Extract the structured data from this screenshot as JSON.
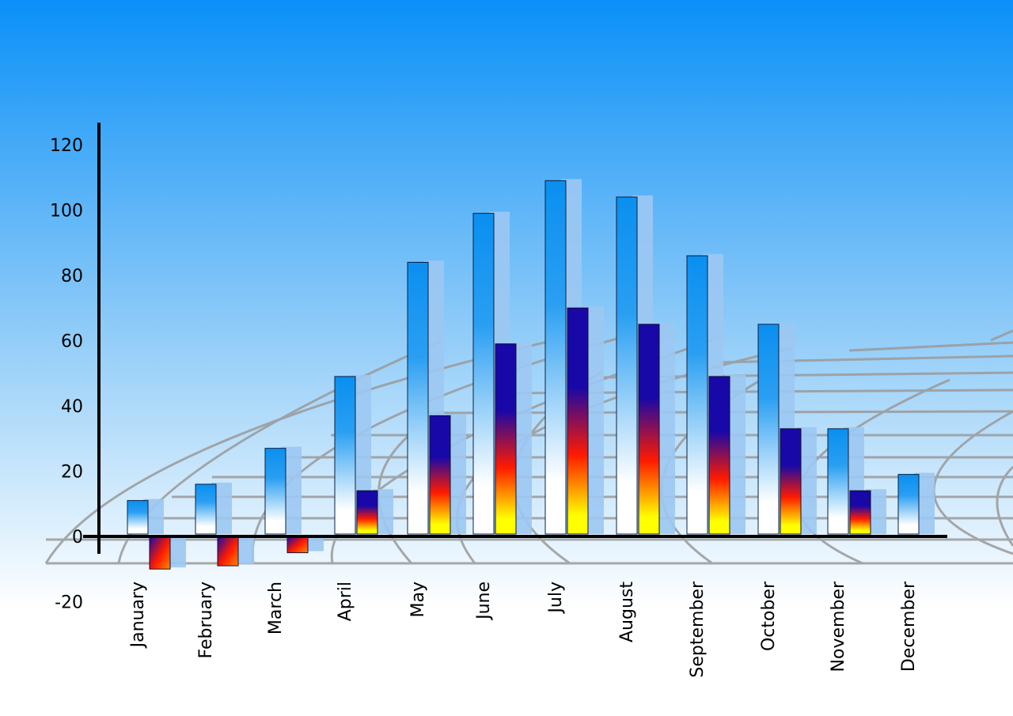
{
  "chart_data": {
    "type": "bar",
    "style": "3d",
    "categories": [
      "January",
      "February",
      "March",
      "April",
      "May",
      "June",
      "July",
      "August",
      "September",
      "October",
      "November",
      "December"
    ],
    "series": [
      {
        "values": [
          11,
          16,
          27,
          49,
          84,
          99,
          109,
          104,
          86,
          65,
          33,
          19
        ],
        "color": "#0a8ff0"
      },
      {
        "values": [
          -10,
          -9,
          -5,
          14,
          37,
          59,
          70,
          65,
          49,
          33,
          14,
          0
        ],
        "color_top": "#1808a8",
        "color_mid": "#ff1a00",
        "color_bottom": "#ffff00"
      }
    ],
    "yticks": [
      120,
      100,
      80,
      60,
      40,
      20,
      0,
      -20
    ],
    "ylim": [
      -20,
      120
    ],
    "grid": false,
    "background": {
      "top": "#0a90f8",
      "bottom": "#ffffff"
    }
  }
}
